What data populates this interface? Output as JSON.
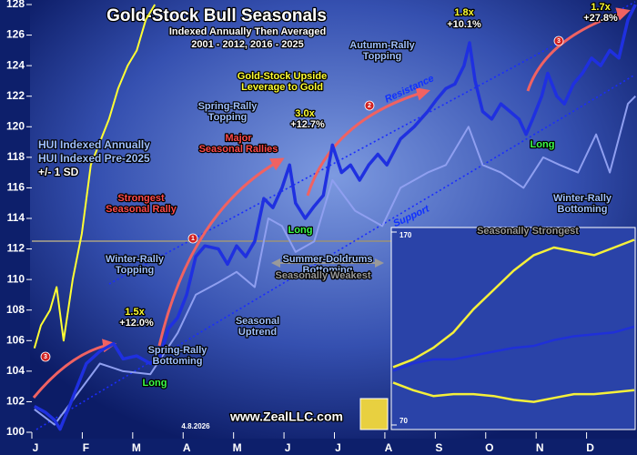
{
  "chart_data": [
    {
      "type": "line",
      "title": "Gold-Stock Bull Seasonals",
      "subtitle": [
        "Indexed Annually Then Averaged",
        "2001 - 2012, 2016 - 2025"
      ],
      "xlim": [
        0,
        12
      ],
      "xticks": [
        {
          "value": 0,
          "label": "J"
        },
        {
          "value": 1,
          "label": "F"
        },
        {
          "value": 2,
          "label": "M"
        },
        {
          "value": 3,
          "label": "A"
        },
        {
          "value": 4,
          "label": "M"
        },
        {
          "value": 5,
          "label": "J"
        },
        {
          "value": 6,
          "label": "J"
        },
        {
          "value": 7,
          "label": "A"
        },
        {
          "value": 8,
          "label": "S"
        },
        {
          "value": 9,
          "label": "O"
        },
        {
          "value": 10,
          "label": "N"
        },
        {
          "value": 11,
          "label": "D"
        }
      ],
      "ylim": [
        100,
        128
      ],
      "yticks": [
        100,
        102,
        104,
        106,
        108,
        110,
        112,
        114,
        116,
        118,
        120,
        122,
        124,
        126,
        128
      ],
      "series": [
        {
          "name": "+/- 1 SD",
          "color": "#ffff33",
          "x": [
            0.05,
            0.18,
            0.36,
            0.49,
            0.63,
            0.81,
            0.99,
            1.17,
            1.35,
            1.53,
            1.71,
            1.9,
            2.08,
            2.26,
            2.44
          ],
          "values": [
            105.5,
            107,
            108,
            109.5,
            106,
            110,
            113,
            117.5,
            119,
            120.5,
            122.5,
            124,
            125,
            127,
            128
          ]
        },
        {
          "name": "HUI Indexed Pre-2025",
          "color": "#8f9ff0",
          "x": [
            0.05,
            0.45,
            0.9,
            1.35,
            1.81,
            2.35,
            2.89,
            3.25,
            3.7,
            4.06,
            4.42,
            4.69,
            4.96,
            5.23,
            5.6,
            5.96,
            6.41,
            6.95,
            7.31,
            7.85,
            8.21,
            8.66,
            8.94,
            9.3,
            9.75,
            10.14,
            10.47,
            10.83,
            11.19,
            11.46,
            11.82,
            11.97
          ],
          "values": [
            101.5,
            100.5,
            102.5,
            104.5,
            104,
            103.8,
            106.5,
            109,
            109.8,
            110.5,
            109.5,
            114,
            113.5,
            111.8,
            112.5,
            116.5,
            114.5,
            113.5,
            116,
            117,
            117.5,
            120,
            117.5,
            117,
            116,
            118,
            117.5,
            117,
            119.5,
            117,
            121.5,
            122
          ]
        },
        {
          "name": "HUI Indexed Annually",
          "color": "#1f30e0",
          "x": [
            0.05,
            0.27,
            0.45,
            0.56,
            0.72,
            0.9,
            1.08,
            1.35,
            1.62,
            1.81,
            2.08,
            2.35,
            2.53,
            2.71,
            2.89,
            3.07,
            3.25,
            3.43,
            3.7,
            3.88,
            4.06,
            4.24,
            4.42,
            4.6,
            4.78,
            4.96,
            5.11,
            5.23,
            5.42,
            5.6,
            5.78,
            5.96,
            6.14,
            6.32,
            6.5,
            6.68,
            6.86,
            7.04,
            7.31,
            7.58,
            7.85,
            8.03,
            8.21,
            8.39,
            8.57,
            8.68,
            8.79,
            8.94,
            9.12,
            9.3,
            9.48,
            9.66,
            9.8,
            9.93,
            10.11,
            10.23,
            10.41,
            10.56,
            10.74,
            10.92,
            11.1,
            11.28,
            11.46,
            11.64,
            11.82,
            11.97
          ],
          "values": [
            101.7,
            101.3,
            100.8,
            100.2,
            101.5,
            103,
            104.5,
            105.3,
            105.8,
            104.8,
            105,
            104.5,
            104.8,
            106.8,
            107.5,
            109,
            111.5,
            112.2,
            112,
            111,
            112.2,
            111.5,
            112.5,
            115.3,
            114.7,
            116,
            117.5,
            115,
            114,
            114.8,
            115.5,
            118.8,
            117,
            117.5,
            116.5,
            117.5,
            118.2,
            117.5,
            119.2,
            120,
            121,
            121.8,
            122.5,
            122.8,
            124,
            125.5,
            123,
            121,
            120.5,
            121.5,
            121,
            120.5,
            119.5,
            120.5,
            122,
            123.5,
            122,
            121.5,
            122.8,
            123.5,
            124.5,
            124,
            125,
            124.5,
            127,
            128
          ]
        }
      ],
      "annotations": [
        "Strongest",
        "Seasonal Rally",
        "Major",
        "Seasonal Rallies",
        "Spring-Rally",
        "Topping",
        "Gold-Stock Upside",
        "Leverage to Gold",
        "3.0x",
        "+12.7%",
        "1.5x",
        "+12.0%",
        "1.8x",
        "+10.1%",
        "1.7x",
        "+27.8%",
        "Autumn-Rally",
        "Topping",
        "Winter-Rally",
        "Topping",
        "Spring-Rally",
        "Bottoming",
        "Summer-Doldrums",
        "Bottoming",
        "Seasonal",
        "Uptrend",
        "Winter-Rally",
        "Bottoming",
        "Seasonally Strongest",
        "Seasonally Weakest",
        "Resistance",
        "Support",
        "Long",
        "Long",
        "Long",
        "1",
        "2",
        "3",
        "3"
      ],
      "source": "www.ZealLLC.com",
      "date": "4.8.2026"
    },
    {
      "type": "line",
      "xlim": [
        0,
        12
      ],
      "ylim": [
        70,
        170
      ],
      "yticks": [
        70,
        170
      ],
      "series": [
        {
          "color": "#f5f03a",
          "x": [
            0,
            1,
            2,
            3,
            4,
            5,
            6,
            7,
            8,
            9,
            10,
            11,
            12
          ],
          "values": [
            100,
            104,
            110,
            118,
            130,
            140,
            150,
            158,
            162,
            160,
            158,
            162,
            166
          ]
        },
        {
          "color": "#1f30d8",
          "x": [
            0,
            1,
            2,
            3,
            4,
            5,
            6,
            7,
            8,
            9,
            10,
            11,
            12
          ],
          "values": [
            98,
            102,
            104,
            104,
            106,
            108,
            110,
            111,
            114,
            116,
            117,
            118,
            121
          ]
        },
        {
          "color": "#f5f03a",
          "x": [
            0,
            1,
            2,
            3,
            4,
            5,
            6,
            7,
            8,
            9,
            10,
            11,
            12
          ],
          "values": [
            92,
            88,
            85,
            86,
            86,
            85,
            83,
            82,
            84,
            86,
            86,
            87,
            88
          ]
        }
      ]
    }
  ]
}
